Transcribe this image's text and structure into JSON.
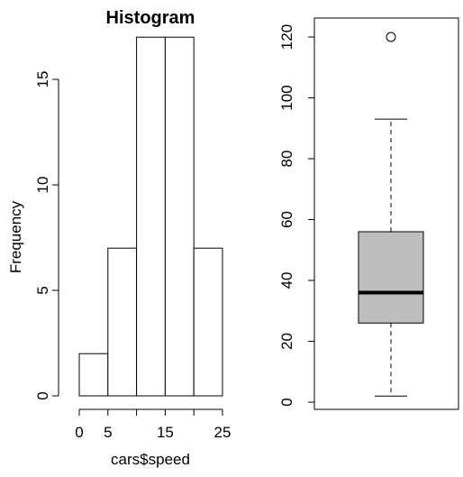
{
  "chart_data": [
    {
      "type": "bar",
      "subtype": "histogram",
      "title": "Histogram",
      "xlabel": "cars$speed",
      "ylabel": "Frequency",
      "bins": [
        [
          0,
          5
        ],
        [
          5,
          10
        ],
        [
          10,
          15
        ],
        [
          15,
          20
        ],
        [
          20,
          25
        ]
      ],
      "values": [
        2,
        7,
        17,
        17,
        7
      ],
      "xlim": [
        0,
        25
      ],
      "ylim": [
        0,
        17
      ],
      "xticks": [
        0,
        5,
        15,
        25
      ],
      "xtick_labels": [
        "0",
        "5",
        "15",
        "25"
      ],
      "yticks": [
        0,
        5,
        10,
        15
      ],
      "ytick_labels": [
        "0",
        "5",
        "10",
        "15"
      ],
      "bar_fill": "#ffffff",
      "grid": false
    },
    {
      "type": "box",
      "title": "",
      "xlabel": "",
      "ylabel": "",
      "min_whisker": 2,
      "q1": 26,
      "median": 36,
      "q3": 56,
      "max_whisker": 93,
      "outliers": [
        120
      ],
      "ylim": [
        0,
        122
      ],
      "yticks": [
        0,
        20,
        40,
        60,
        80,
        100,
        120
      ],
      "ytick_labels": [
        "0",
        "20",
        "40",
        "60",
        "80",
        "100",
        "120"
      ],
      "box_fill": "#bebebe",
      "grid": false
    }
  ]
}
